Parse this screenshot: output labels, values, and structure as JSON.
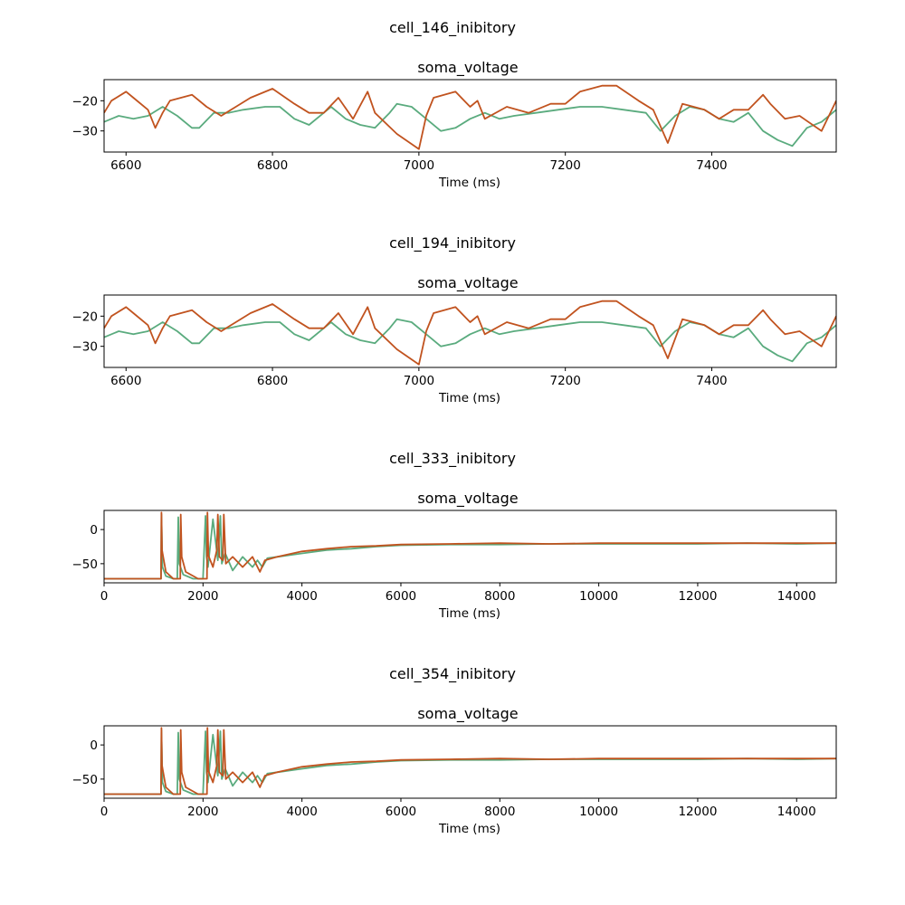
{
  "colors": {
    "series_a": "#5aab7e",
    "series_b": "#c1531f",
    "axes": "#000000",
    "background": "#ffffff"
  },
  "chart_data": [
    {
      "type": "line",
      "suptitle": "cell_146_inibitory",
      "title": "soma_voltage",
      "xlabel": "Time (ms)",
      "ylabel": "",
      "xlim": [
        6570,
        7570
      ],
      "ylim": [
        -37,
        -13
      ],
      "xticks": [
        6600,
        6800,
        7000,
        7200,
        7400
      ],
      "yticks": [
        -20,
        -30
      ],
      "xtick_labels": [
        "6600",
        "6800",
        "7000",
        "7200",
        "7400"
      ],
      "ytick_labels": [
        "−20",
        "−30"
      ],
      "series": [
        {
          "color": "#5aab7e",
          "x": [
            6570,
            6590,
            6610,
            6630,
            6650,
            6670,
            6690,
            6700,
            6720,
            6740,
            6760,
            6790,
            6810,
            6830,
            6850,
            6870,
            6880,
            6900,
            6920,
            6940,
            6960,
            6970,
            6990,
            7010,
            7030,
            7050,
            7070,
            7090,
            7110,
            7130,
            7160,
            7190,
            7220,
            7250,
            7280,
            7310,
            7330,
            7350,
            7370,
            7390,
            7410,
            7430,
            7450,
            7470,
            7490,
            7510,
            7530,
            7550,
            7570
          ],
          "y": [
            -27,
            -25,
            -26,
            -25,
            -22,
            -25,
            -29,
            -29,
            -24,
            -24,
            -23,
            -22,
            -22,
            -26,
            -28,
            -24,
            -22,
            -26,
            -28,
            -29,
            -24,
            -21,
            -22,
            -26,
            -30,
            -29,
            -26,
            -24,
            -26,
            -25,
            -24,
            -23,
            -22,
            -22,
            -23,
            -24,
            -30,
            -25,
            -22,
            -23,
            -26,
            -27,
            -24,
            -30,
            -33,
            -35,
            -29,
            -27,
            -23
          ]
        },
        {
          "color": "#c1531f",
          "x": [
            6570,
            6580,
            6600,
            6610,
            6630,
            6640,
            6650,
            6660,
            6690,
            6710,
            6730,
            6750,
            6770,
            6800,
            6830,
            6850,
            6870,
            6890,
            6910,
            6930,
            6940,
            6970,
            7000,
            7010,
            7020,
            7050,
            7070,
            7080,
            7090,
            7120,
            7150,
            7180,
            7200,
            7220,
            7250,
            7270,
            7300,
            7320,
            7340,
            7360,
            7390,
            7410,
            7430,
            7450,
            7470,
            7480,
            7500,
            7520,
            7550,
            7570
          ],
          "y": [
            -24,
            -20,
            -17,
            -19,
            -23,
            -29,
            -24,
            -20,
            -18,
            -22,
            -25,
            -22,
            -19,
            -16,
            -21,
            -24,
            -24,
            -19,
            -26,
            -17,
            -24,
            -31,
            -36,
            -25,
            -19,
            -17,
            -22,
            -20,
            -26,
            -22,
            -24,
            -21,
            -21,
            -17,
            -15,
            -15,
            -20,
            -23,
            -34,
            -21,
            -23,
            -26,
            -23,
            -23,
            -18,
            -21,
            -26,
            -25,
            -30,
            -20
          ]
        }
      ]
    },
    {
      "type": "line",
      "suptitle": "cell_194_inibitory",
      "title": "soma_voltage",
      "xlabel": "Time (ms)",
      "ylabel": "",
      "xlim": [
        6570,
        7570
      ],
      "ylim": [
        -37,
        -13
      ],
      "xticks": [
        6600,
        6800,
        7000,
        7200,
        7400
      ],
      "yticks": [
        -20,
        -30
      ],
      "xtick_labels": [
        "6600",
        "6800",
        "7000",
        "7200",
        "7400"
      ],
      "ytick_labels": [
        "−20",
        "−30"
      ],
      "series": [
        {
          "color": "#5aab7e",
          "x": [
            6570,
            6590,
            6610,
            6630,
            6650,
            6670,
            6690,
            6700,
            6720,
            6740,
            6760,
            6790,
            6810,
            6830,
            6850,
            6870,
            6880,
            6900,
            6920,
            6940,
            6960,
            6970,
            6990,
            7010,
            7030,
            7050,
            7070,
            7090,
            7110,
            7130,
            7160,
            7190,
            7220,
            7250,
            7280,
            7310,
            7330,
            7350,
            7370,
            7390,
            7410,
            7430,
            7450,
            7470,
            7490,
            7510,
            7530,
            7550,
            7570
          ],
          "y": [
            -27,
            -25,
            -26,
            -25,
            -22,
            -25,
            -29,
            -29,
            -24,
            -24,
            -23,
            -22,
            -22,
            -26,
            -28,
            -24,
            -22,
            -26,
            -28,
            -29,
            -24,
            -21,
            -22,
            -26,
            -30,
            -29,
            -26,
            -24,
            -26,
            -25,
            -24,
            -23,
            -22,
            -22,
            -23,
            -24,
            -30,
            -25,
            -22,
            -23,
            -26,
            -27,
            -24,
            -30,
            -33,
            -35,
            -29,
            -27,
            -23
          ]
        },
        {
          "color": "#c1531f",
          "x": [
            6570,
            6580,
            6600,
            6610,
            6630,
            6640,
            6650,
            6660,
            6690,
            6710,
            6730,
            6750,
            6770,
            6800,
            6830,
            6850,
            6870,
            6890,
            6910,
            6930,
            6940,
            6970,
            7000,
            7010,
            7020,
            7050,
            7070,
            7080,
            7090,
            7120,
            7150,
            7180,
            7200,
            7220,
            7250,
            7270,
            7300,
            7320,
            7340,
            7360,
            7390,
            7410,
            7430,
            7450,
            7470,
            7480,
            7500,
            7520,
            7550,
            7570
          ],
          "y": [
            -24,
            -20,
            -17,
            -19,
            -23,
            -29,
            -24,
            -20,
            -18,
            -22,
            -25,
            -22,
            -19,
            -16,
            -21,
            -24,
            -24,
            -19,
            -26,
            -17,
            -24,
            -31,
            -36,
            -25,
            -19,
            -17,
            -22,
            -20,
            -26,
            -22,
            -24,
            -21,
            -21,
            -17,
            -15,
            -15,
            -20,
            -23,
            -34,
            -21,
            -23,
            -26,
            -23,
            -23,
            -18,
            -21,
            -26,
            -25,
            -30,
            -20
          ]
        }
      ]
    },
    {
      "type": "line",
      "suptitle": "cell_333_inibitory",
      "title": "soma_voltage",
      "xlabel": "Time (ms)",
      "ylabel": "",
      "xlim": [
        0,
        14800
      ],
      "ylim": [
        -78,
        28
      ],
      "xticks": [
        0,
        2000,
        4000,
        6000,
        8000,
        10000,
        12000,
        14000
      ],
      "yticks": [
        0,
        -50
      ],
      "xtick_labels": [
        "0",
        "2000",
        "4000",
        "6000",
        "8000",
        "10000",
        "12000",
        "14000"
      ],
      "ytick_labels": [
        "0",
        "−50"
      ],
      "series": [
        {
          "color": "#5aab7e",
          "x": [
            0,
            1150,
            1160,
            1180,
            1250,
            1400,
            1480,
            1500,
            1520,
            1600,
            1800,
            2000,
            2050,
            2070,
            2100,
            2200,
            2300,
            2350,
            2380,
            2450,
            2600,
            2800,
            3000,
            3100,
            3200,
            3300,
            3500,
            4000,
            4500,
            5000,
            5500,
            6000,
            7000,
            8000,
            9000,
            10000,
            11000,
            12000,
            13000,
            14000,
            14800
          ],
          "y": [
            -72,
            -72,
            22,
            -55,
            -68,
            -72,
            -72,
            18,
            -50,
            -66,
            -72,
            -72,
            20,
            -40,
            -55,
            15,
            -45,
            20,
            -50,
            -35,
            -60,
            -40,
            -55,
            -45,
            -55,
            -42,
            -40,
            -35,
            -30,
            -28,
            -25,
            -23,
            -22,
            -22,
            -21,
            -21,
            -21,
            -21,
            -20,
            -21,
            -20
          ]
        },
        {
          "color": "#c1531f",
          "x": [
            0,
            1150,
            1160,
            1170,
            1250,
            1400,
            1540,
            1550,
            1570,
            1650,
            1900,
            2080,
            2090,
            2110,
            2200,
            2280,
            2300,
            2330,
            2400,
            2420,
            2460,
            2600,
            2800,
            3000,
            3150,
            3250,
            3500,
            4000,
            4500,
            5000,
            5500,
            6000,
            7000,
            8000,
            9000,
            10000,
            11000,
            12000,
            13000,
            14000,
            14800
          ],
          "y": [
            -72,
            -72,
            25,
            -30,
            -62,
            -72,
            -72,
            22,
            -40,
            -62,
            -72,
            -72,
            25,
            -38,
            -55,
            -30,
            22,
            -40,
            -45,
            22,
            -50,
            -40,
            -55,
            -40,
            -62,
            -45,
            -40,
            -32,
            -28,
            -25,
            -24,
            -22,
            -21,
            -20,
            -21,
            -20,
            -20,
            -20,
            -20,
            -20,
            -20
          ]
        }
      ]
    },
    {
      "type": "line",
      "suptitle": "cell_354_inibitory",
      "title": "soma_voltage",
      "xlabel": "Time (ms)",
      "ylabel": "",
      "xlim": [
        0,
        14800
      ],
      "ylim": [
        -78,
        28
      ],
      "xticks": [
        0,
        2000,
        4000,
        6000,
        8000,
        10000,
        12000,
        14000
      ],
      "yticks": [
        0,
        -50
      ],
      "xtick_labels": [
        "0",
        "2000",
        "4000",
        "6000",
        "8000",
        "10000",
        "12000",
        "14000"
      ],
      "ytick_labels": [
        "0",
        "−50"
      ],
      "series": [
        {
          "color": "#5aab7e",
          "x": [
            0,
            1150,
            1160,
            1180,
            1250,
            1400,
            1480,
            1500,
            1520,
            1600,
            1800,
            2000,
            2050,
            2070,
            2100,
            2200,
            2300,
            2350,
            2380,
            2450,
            2600,
            2800,
            3000,
            3100,
            3200,
            3300,
            3500,
            4000,
            4500,
            5000,
            5500,
            6000,
            7000,
            8000,
            9000,
            10000,
            11000,
            12000,
            13000,
            14000,
            14800
          ],
          "y": [
            -72,
            -72,
            22,
            -55,
            -68,
            -72,
            -72,
            18,
            -50,
            -66,
            -72,
            -72,
            20,
            -40,
            -55,
            15,
            -45,
            20,
            -50,
            -35,
            -60,
            -40,
            -55,
            -45,
            -55,
            -42,
            -40,
            -35,
            -30,
            -28,
            -25,
            -23,
            -22,
            -22,
            -21,
            -21,
            -21,
            -21,
            -20,
            -21,
            -20
          ]
        },
        {
          "color": "#c1531f",
          "x": [
            0,
            1150,
            1160,
            1170,
            1250,
            1400,
            1540,
            1550,
            1570,
            1650,
            1900,
            2080,
            2090,
            2110,
            2200,
            2280,
            2300,
            2330,
            2400,
            2420,
            2460,
            2600,
            2800,
            3000,
            3150,
            3250,
            3500,
            4000,
            4500,
            5000,
            5500,
            6000,
            7000,
            8000,
            9000,
            10000,
            11000,
            12000,
            13000,
            14000,
            14800
          ],
          "y": [
            -72,
            -72,
            25,
            -30,
            -62,
            -72,
            -72,
            22,
            -40,
            -62,
            -72,
            -72,
            25,
            -38,
            -55,
            -30,
            22,
            -40,
            -45,
            22,
            -50,
            -40,
            -55,
            -40,
            -62,
            -45,
            -40,
            -32,
            -28,
            -25,
            -24,
            -22,
            -21,
            -20,
            -21,
            -20,
            -20,
            -20,
            -20,
            -20,
            -20
          ]
        }
      ]
    }
  ]
}
